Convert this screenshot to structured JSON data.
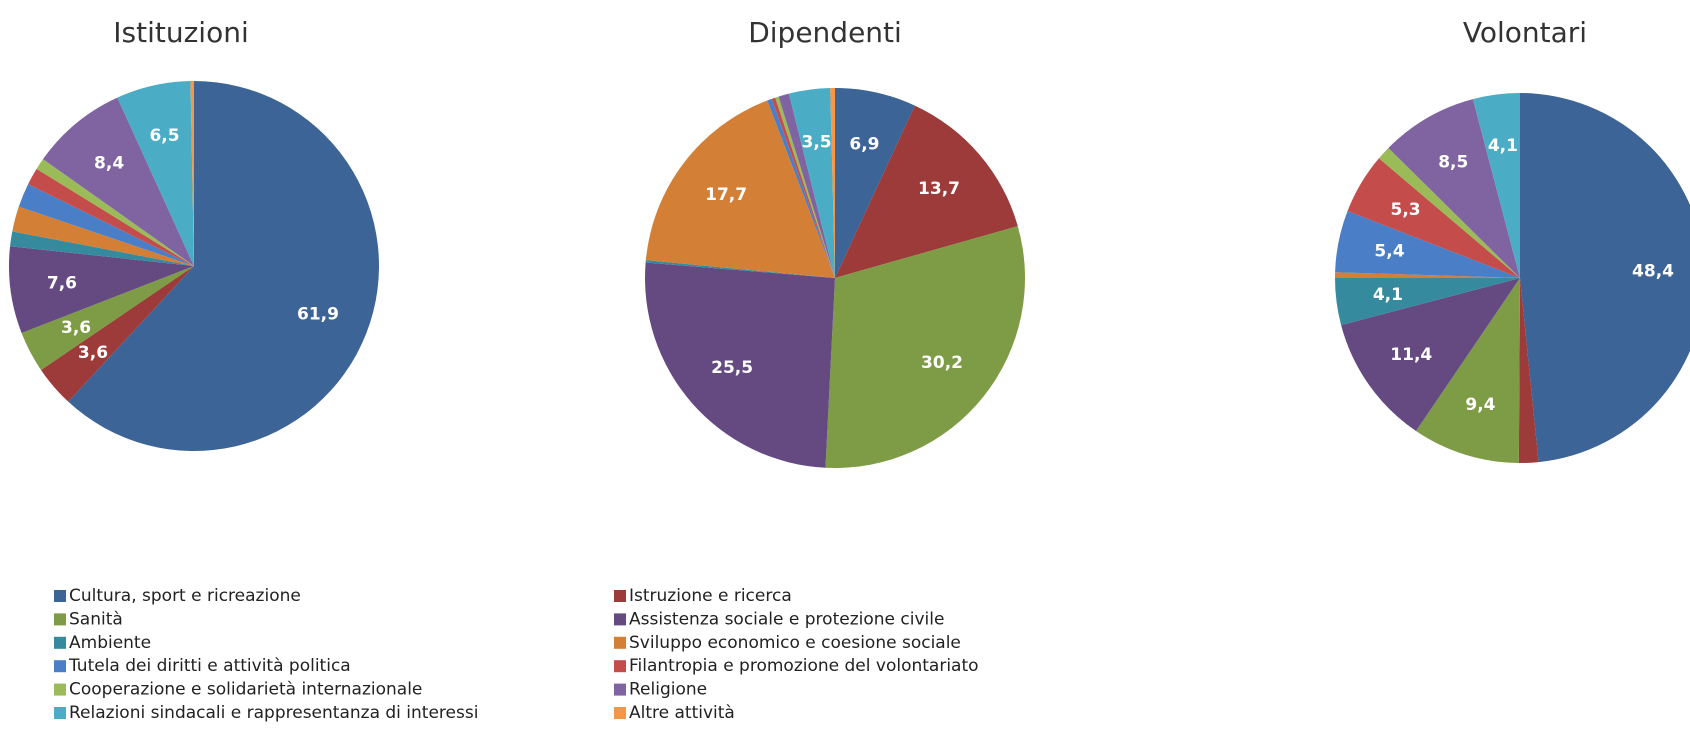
{
  "chart_data": [
    {
      "type": "pie",
      "title": "Istituzioni",
      "categories": [
        "Cultura, sport e ricreazione",
        "Istruzione e ricerca",
        "Sanità",
        "Assistenza sociale e protezione civile",
        "Ambiente",
        "Sviluppo economico e coesione sociale",
        "Tutela dei diritti e attività politica",
        "Filantropia e promozione del volontariato",
        "Cooperazione e solidarietà internazionale",
        "Religione",
        "Relazioni sindacali e rappresentanza di interessi",
        "Altre attività"
      ],
      "colors": [
        "#3c6497",
        "#9c3b3a",
        "#7d9c45",
        "#654a82",
        "#358a9e",
        "#d47f36",
        "#4a7ec6",
        "#c44d4b",
        "#9bbb59",
        "#8064a2",
        "#4bacc6",
        "#f79646"
      ],
      "values": [
        61.9,
        3.6,
        3.6,
        7.6,
        1.3,
        2.2,
        2.1,
        1.5,
        1.0,
        8.4,
        6.5,
        0.3
      ],
      "value_labels": [
        "61,9",
        "3,6",
        "3,6",
        "7,6",
        null,
        null,
        null,
        null,
        null,
        "8,4",
        "6,5",
        null
      ]
    },
    {
      "type": "pie",
      "title": "Dipendenti",
      "categories": [
        "Cultura, sport e ricreazione",
        "Istruzione e ricerca",
        "Sanità",
        "Assistenza sociale e protezione civile",
        "Ambiente",
        "Sviluppo economico e coesione sociale",
        "Tutela dei diritti e attività politica",
        "Filantropia e promozione del volontariato",
        "Cooperazione e solidarietà internazionale",
        "Religione",
        "Relazioni sindacali e rappresentanza di interessi",
        "Altre attività"
      ],
      "colors": [
        "#3c6497",
        "#9c3b3a",
        "#7d9c45",
        "#654a82",
        "#358a9e",
        "#d47f36",
        "#4a7ec6",
        "#c44d4b",
        "#9bbb59",
        "#8064a2",
        "#4bacc6",
        "#f79646"
      ],
      "values": [
        6.9,
        13.7,
        30.2,
        25.5,
        0.2,
        17.7,
        0.4,
        0.3,
        0.3,
        0.9,
        3.5,
        0.4
      ],
      "value_labels": [
        "6,9",
        "13,7",
        "30,2",
        "25,5",
        null,
        "17,7",
        null,
        null,
        null,
        null,
        "3,5",
        null
      ]
    },
    {
      "type": "pie",
      "title": "Volontari",
      "categories": [
        "Cultura, sport e ricreazione",
        "Istruzione e ricerca",
        "Sanità",
        "Assistenza sociale e protezione civile",
        "Ambiente",
        "Sviluppo economico e coesione sociale",
        "Tutela dei diritti e attività politica",
        "Filantropia e promozione del volontariato",
        "Cooperazione e solidarietà internazionale",
        "Religione",
        "Relazioni sindacali e rappresentanza di interessi",
        "Altre attività"
      ],
      "colors": [
        "#3c6497",
        "#9c3b3a",
        "#7d9c45",
        "#654a82",
        "#358a9e",
        "#d47f36",
        "#4a7ec6",
        "#c44d4b",
        "#9bbb59",
        "#8064a2",
        "#4bacc6",
        "#f79646"
      ],
      "values": [
        48.4,
        1.7,
        9.4,
        11.4,
        4.1,
        0.5,
        5.4,
        5.3,
        1.2,
        8.5,
        4.1,
        0
      ],
      "value_labels": [
        "48,4",
        null,
        "9,4",
        "11,4",
        "4,1",
        null,
        "5,4",
        "5,3",
        null,
        "8,5",
        "4,1",
        null
      ]
    }
  ]
}
